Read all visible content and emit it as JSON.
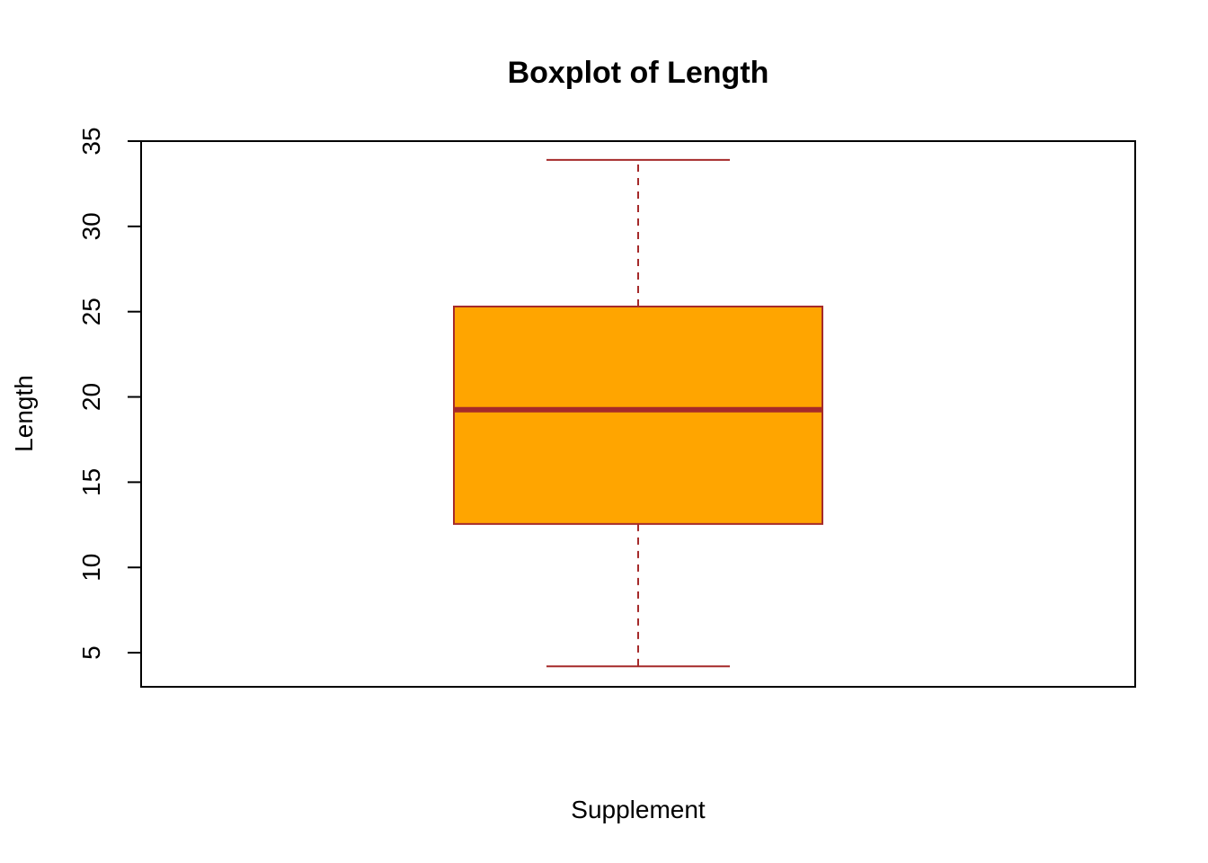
{
  "chart_data": {
    "type": "boxplot",
    "title": "Boxplot of Length",
    "xlabel": "Supplement",
    "ylabel": "Length",
    "ylim": [
      3,
      35
    ],
    "yticks": [
      5,
      10,
      15,
      20,
      25,
      30,
      35
    ],
    "ytick_labels": [
      "5",
      "10",
      "15",
      "20",
      "25",
      "30",
      "35"
    ],
    "grid": false,
    "legend": "none",
    "box": {
      "min": 4.2,
      "q1": 12.55,
      "median": 19.25,
      "q3": 25.3,
      "max": 33.9
    },
    "colors": {
      "fill": "#FFA500",
      "border": "#A52A2A",
      "axis": "#000000"
    }
  }
}
